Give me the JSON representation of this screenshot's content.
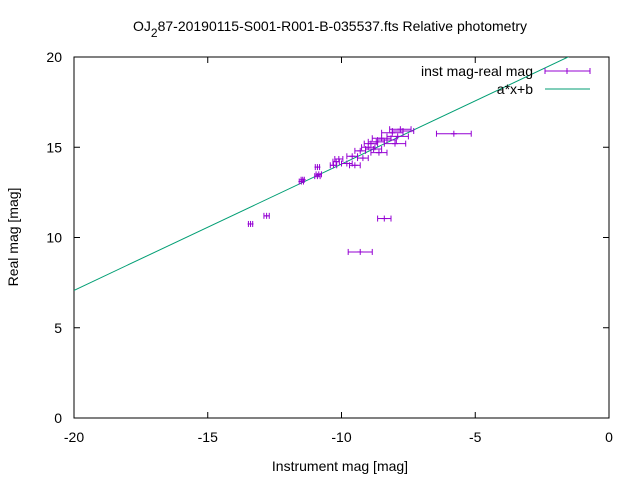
{
  "chart_data": {
    "type": "scatter",
    "title": "OJ287-20190115-S001-R001-B-035537.fts Relative photometry",
    "title_prefix": "OJ",
    "title_sub": "2",
    "title_suffix": "87-20190115-S001-R001-B-035537.fts Relative photometry",
    "xlabel": "Instrument mag [mag]",
    "ylabel": "Real mag [mag]",
    "xlim": [
      -20,
      0
    ],
    "ylim": [
      0,
      20
    ],
    "xticks": [
      "-20",
      "-15",
      "-10",
      "-5",
      "0"
    ],
    "yticks": [
      "0",
      "5",
      "10",
      "15",
      "20"
    ],
    "grid": false,
    "legend_position": "top-right",
    "series": [
      {
        "name": "inst mag-real mag",
        "color": "#9400d3",
        "style": "points-with-xerrorbars",
        "points": [
          {
            "x": -13.4,
            "y": 10.75,
            "xerr": 0.08
          },
          {
            "x": -12.8,
            "y": 11.2,
            "xerr": 0.1
          },
          {
            "x": -11.5,
            "y": 13.1,
            "xerr": 0.08
          },
          {
            "x": -11.45,
            "y": 13.2,
            "xerr": 0.06
          },
          {
            "x": -10.9,
            "y": 13.4,
            "xerr": 0.1
          },
          {
            "x": -10.85,
            "y": 13.5,
            "xerr": 0.1
          },
          {
            "x": -10.9,
            "y": 13.9,
            "xerr": 0.08
          },
          {
            "x": -10.3,
            "y": 14.0,
            "xerr": 0.12
          },
          {
            "x": -10.2,
            "y": 14.2,
            "xerr": 0.12
          },
          {
            "x": -10.1,
            "y": 14.35,
            "xerr": 0.15
          },
          {
            "x": -9.8,
            "y": 14.1,
            "xerr": 0.2
          },
          {
            "x": -9.6,
            "y": 14.5,
            "xerr": 0.2
          },
          {
            "x": -9.5,
            "y": 14.0,
            "xerr": 0.2
          },
          {
            "x": -9.3,
            "y": 14.8,
            "xerr": 0.2
          },
          {
            "x": -9.2,
            "y": 14.4,
            "xerr": 0.2
          },
          {
            "x": -9.0,
            "y": 15.0,
            "xerr": 0.25
          },
          {
            "x": -8.9,
            "y": 15.2,
            "xerr": 0.25
          },
          {
            "x": -8.8,
            "y": 14.9,
            "xerr": 0.3
          },
          {
            "x": -8.7,
            "y": 15.3,
            "xerr": 0.3
          },
          {
            "x": -8.6,
            "y": 14.7,
            "xerr": 0.3
          },
          {
            "x": -8.5,
            "y": 15.5,
            "xerr": 0.35
          },
          {
            "x": -8.3,
            "y": 15.4,
            "xerr": 0.35
          },
          {
            "x": -8.1,
            "y": 15.8,
            "xerr": 0.4
          },
          {
            "x": -8.0,
            "y": 15.2,
            "xerr": 0.4
          },
          {
            "x": -7.9,
            "y": 15.6,
            "xerr": 0.4
          },
          {
            "x": -7.8,
            "y": 16.0,
            "xerr": 0.4
          },
          {
            "x": -7.7,
            "y": 15.9,
            "xerr": 0.4
          },
          {
            "x": -8.4,
            "y": 11.05,
            "xerr": 0.25
          },
          {
            "x": -9.3,
            "y": 9.2,
            "xerr": 0.45
          },
          {
            "x": -5.8,
            "y": 15.75,
            "xerr": 0.65
          }
        ]
      },
      {
        "name": "a*x+b",
        "color": "#009e73",
        "style": "line",
        "slope": 0.7,
        "intercept": 21.07
      }
    ]
  }
}
